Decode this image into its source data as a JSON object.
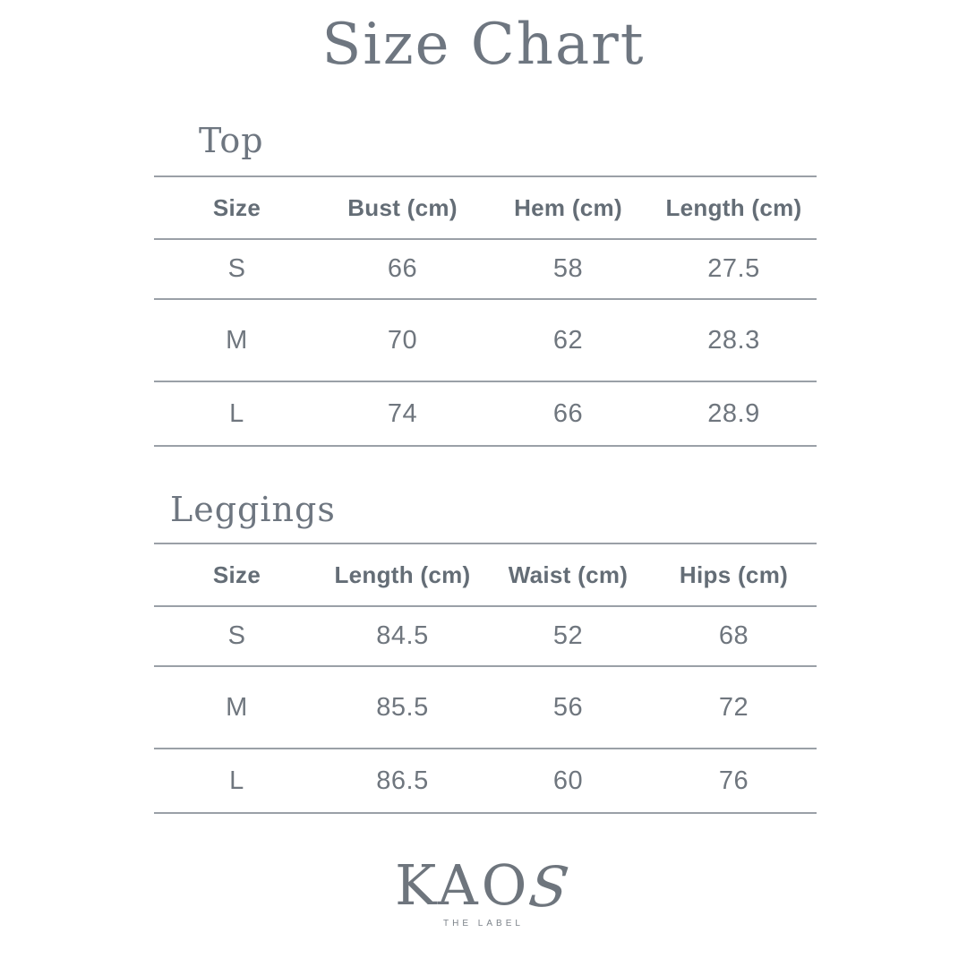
{
  "page": {
    "title": "Size Chart"
  },
  "sections": [
    {
      "heading": "Top",
      "columns": [
        "Size",
        "Bust (cm)",
        "Hem (cm)",
        "Length (cm)"
      ],
      "rows": [
        [
          "S",
          "66",
          "58",
          "27.5"
        ],
        [
          "M",
          "70",
          "62",
          "28.3"
        ],
        [
          "L",
          "74",
          "66",
          "28.9"
        ]
      ]
    },
    {
      "heading": "Leggings",
      "columns": [
        "Size",
        "Length (cm)",
        "Waist (cm)",
        "Hips (cm)"
      ],
      "rows": [
        [
          "S",
          "84.5",
          "52",
          "68"
        ],
        [
          "M",
          "85.5",
          "56",
          "72"
        ],
        [
          "L",
          "86.5",
          "60",
          "76"
        ]
      ]
    }
  ],
  "logo": {
    "name": "KAOS",
    "name_main": "KAO",
    "name_s": "S",
    "tagline": "THE LABEL"
  },
  "colors": {
    "background": "#ffffff",
    "text": "#6b737c",
    "heading_text": "#6e7680",
    "line": "#9aa0a7"
  }
}
